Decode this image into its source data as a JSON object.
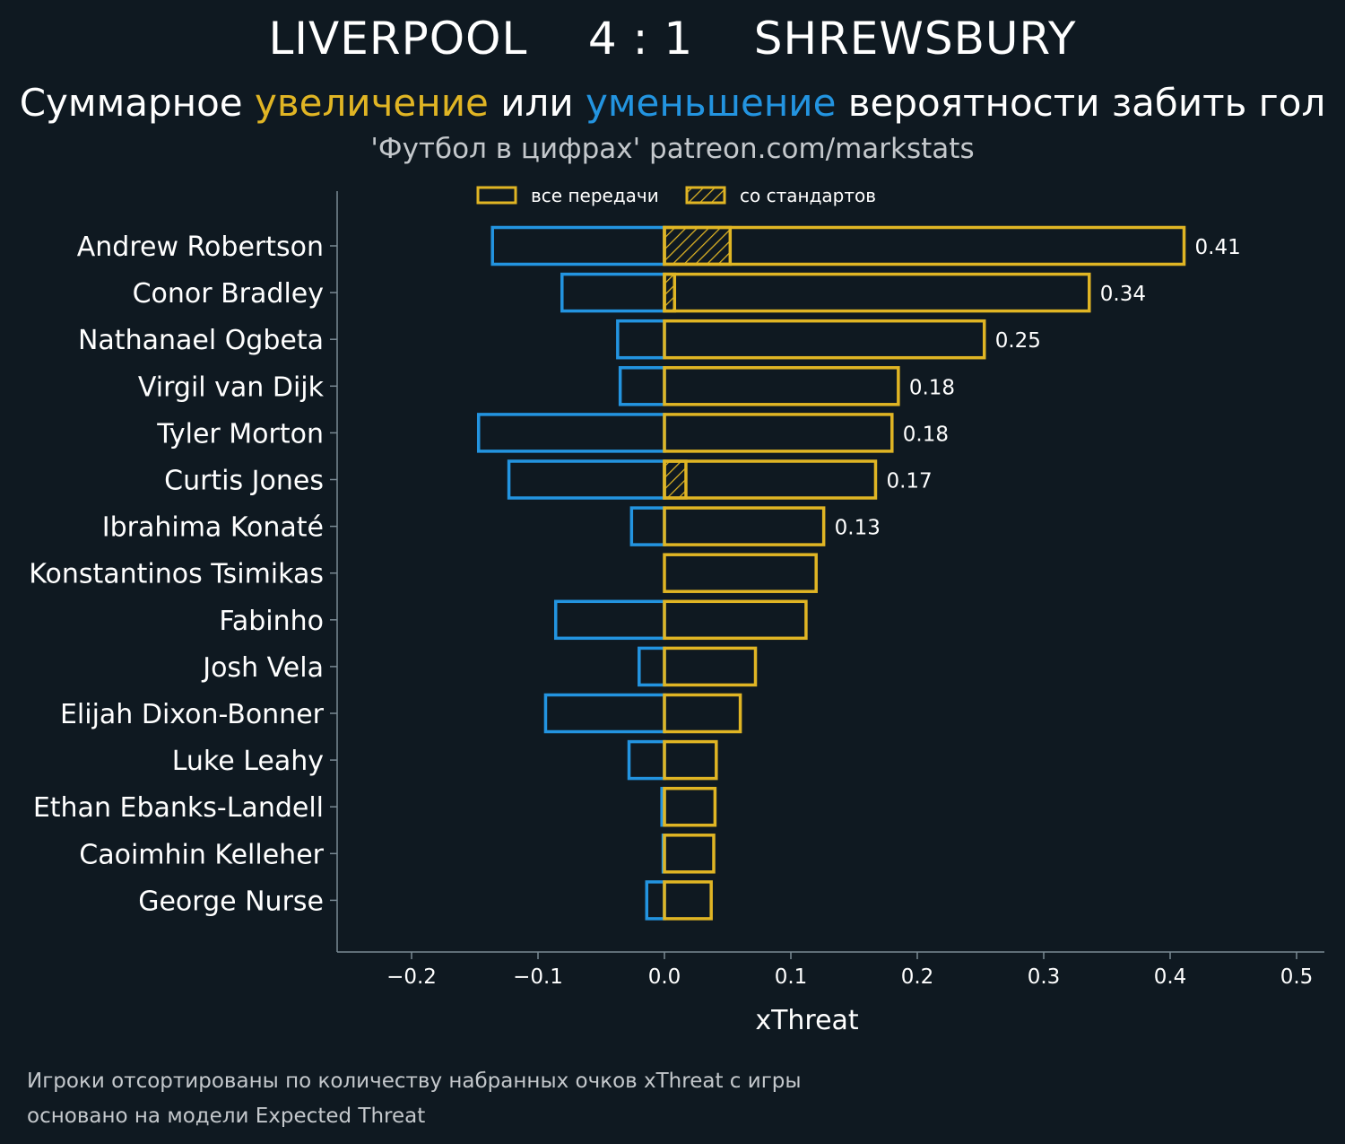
{
  "header": {
    "home_team": "LIVERPOOL",
    "score": "4 : 1",
    "away_team": "SHREWSBURY",
    "subtitle_part1": "Суммарное ",
    "subtitle_increase": "увеличение",
    "subtitle_part2": " или ",
    "subtitle_decrease": "уменьшение",
    "subtitle_part3": " вероятности забить гол",
    "credit": "'Футбол в цифрах' patreon.com/markstats"
  },
  "footer": {
    "note1": "Игроки отсортированы по количеству набранных очков xThreat с игры",
    "note2": "основано на модели Expected Threat"
  },
  "colors": {
    "background": "#0f1921",
    "increase": "#e0b524",
    "decrease": "#2394e0",
    "axis": "#7a8a94",
    "text": "#ffffff"
  },
  "chart_data": {
    "type": "bar",
    "orientation": "horizontal",
    "xlabel": "xThreat",
    "xlim": [
      -0.26,
      0.52
    ],
    "xticks": [
      -0.2,
      -0.1,
      0.0,
      0.1,
      0.2,
      0.3,
      0.4,
      0.5
    ],
    "xtick_labels": [
      "−0.2",
      "−0.1",
      "0.0",
      "0.1",
      "0.2",
      "0.3",
      "0.4",
      "0.5"
    ],
    "legend": {
      "placement": "top-center",
      "entries": [
        "все передачи",
        "со стандартов"
      ]
    },
    "categories": [
      "Andrew Robertson",
      "Conor Bradley",
      "Nathanael Ogbeta",
      "Virgil van Dijk",
      "Tyler Morton",
      "Curtis Jones",
      "Ibrahima Konaté",
      "Konstantinos Tsimikas",
      "Fabinho",
      "Josh Vela",
      "Elijah Dixon-Bonner",
      "Luke Leahy",
      "Ethan Ebanks-Landell",
      "Caoimhin Kelleher",
      "George Nurse"
    ],
    "series": [
      {
        "name": "все передачи",
        "positive": [
          0.411,
          0.336,
          0.253,
          0.185,
          0.18,
          0.167,
          0.126,
          0.12,
          0.112,
          0.072,
          0.06,
          0.041,
          0.04,
          0.039,
          0.037
        ],
        "negative": [
          -0.136,
          -0.081,
          -0.037,
          -0.035,
          -0.147,
          -0.123,
          -0.026,
          0.0,
          -0.086,
          -0.02,
          -0.094,
          -0.028,
          -0.002,
          -0.001,
          -0.014
        ]
      },
      {
        "name": "со стандартов",
        "positive": [
          0.052,
          0.008,
          0,
          0,
          0,
          0.017,
          0,
          0,
          0,
          0,
          0,
          0,
          0,
          0,
          0
        ]
      }
    ],
    "data_labels": [
      "0.41",
      "0.34",
      "0.25",
      "0.18",
      "0.18",
      "0.17",
      "0.13",
      "",
      "",
      "",
      "",
      "",
      "",
      "",
      ""
    ]
  }
}
